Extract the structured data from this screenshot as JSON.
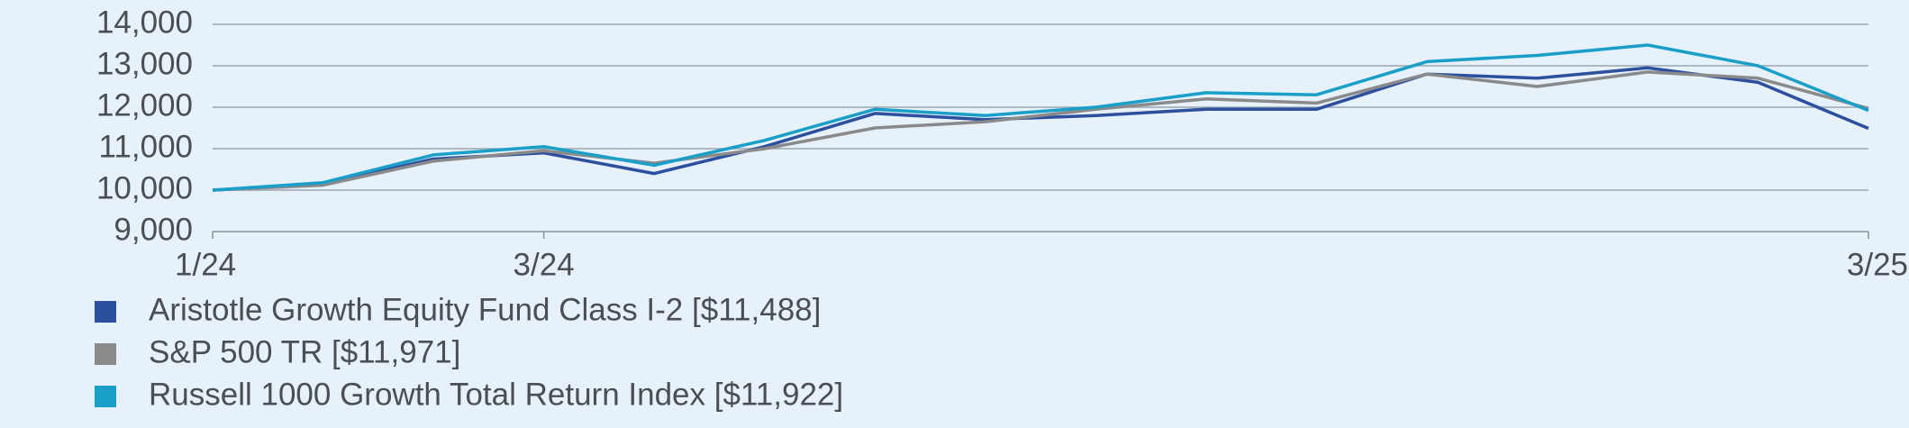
{
  "chart_data": {
    "type": "line",
    "categories": [
      "1/24",
      null,
      null,
      "3/24",
      null,
      null,
      null,
      null,
      null,
      null,
      null,
      null,
      null,
      null,
      null,
      "3/25"
    ],
    "series": [
      {
        "name": "Aristotle Growth Equity Fund Class I-2 [$11,488]",
        "color": "#2c4f9e",
        "values": [
          10000,
          10150,
          10750,
          10900,
          10400,
          11050,
          11850,
          11700,
          11800,
          11950,
          11950,
          12800,
          12700,
          12950,
          12600,
          11488
        ]
      },
      {
        "name": "S&P 500 TR [$11,971]",
        "color": "#8a8a8a",
        "values": [
          10000,
          10120,
          10700,
          10950,
          10650,
          11000,
          11500,
          11650,
          11950,
          12200,
          12100,
          12800,
          12500,
          12850,
          12700,
          11971
        ]
      },
      {
        "name": "Russell 1000 Growth Total Return Index [$11,922]",
        "color": "#1a9fc9",
        "values": [
          10000,
          10180,
          10850,
          11050,
          10600,
          11200,
          11950,
          11800,
          12000,
          12350,
          12300,
          13100,
          13250,
          13500,
          13000,
          11922
        ]
      }
    ],
    "ylim": [
      9000,
      14000
    ],
    "yticks": [
      {
        "value": 9000,
        "label": "9,000"
      },
      {
        "value": 10000,
        "label": "10,000"
      },
      {
        "value": 11000,
        "label": "11,000"
      },
      {
        "value": 12000,
        "label": "12,000"
      },
      {
        "value": 13000,
        "label": "13,000"
      },
      {
        "value": 14000,
        "label": "14,000"
      }
    ],
    "grid": true
  }
}
